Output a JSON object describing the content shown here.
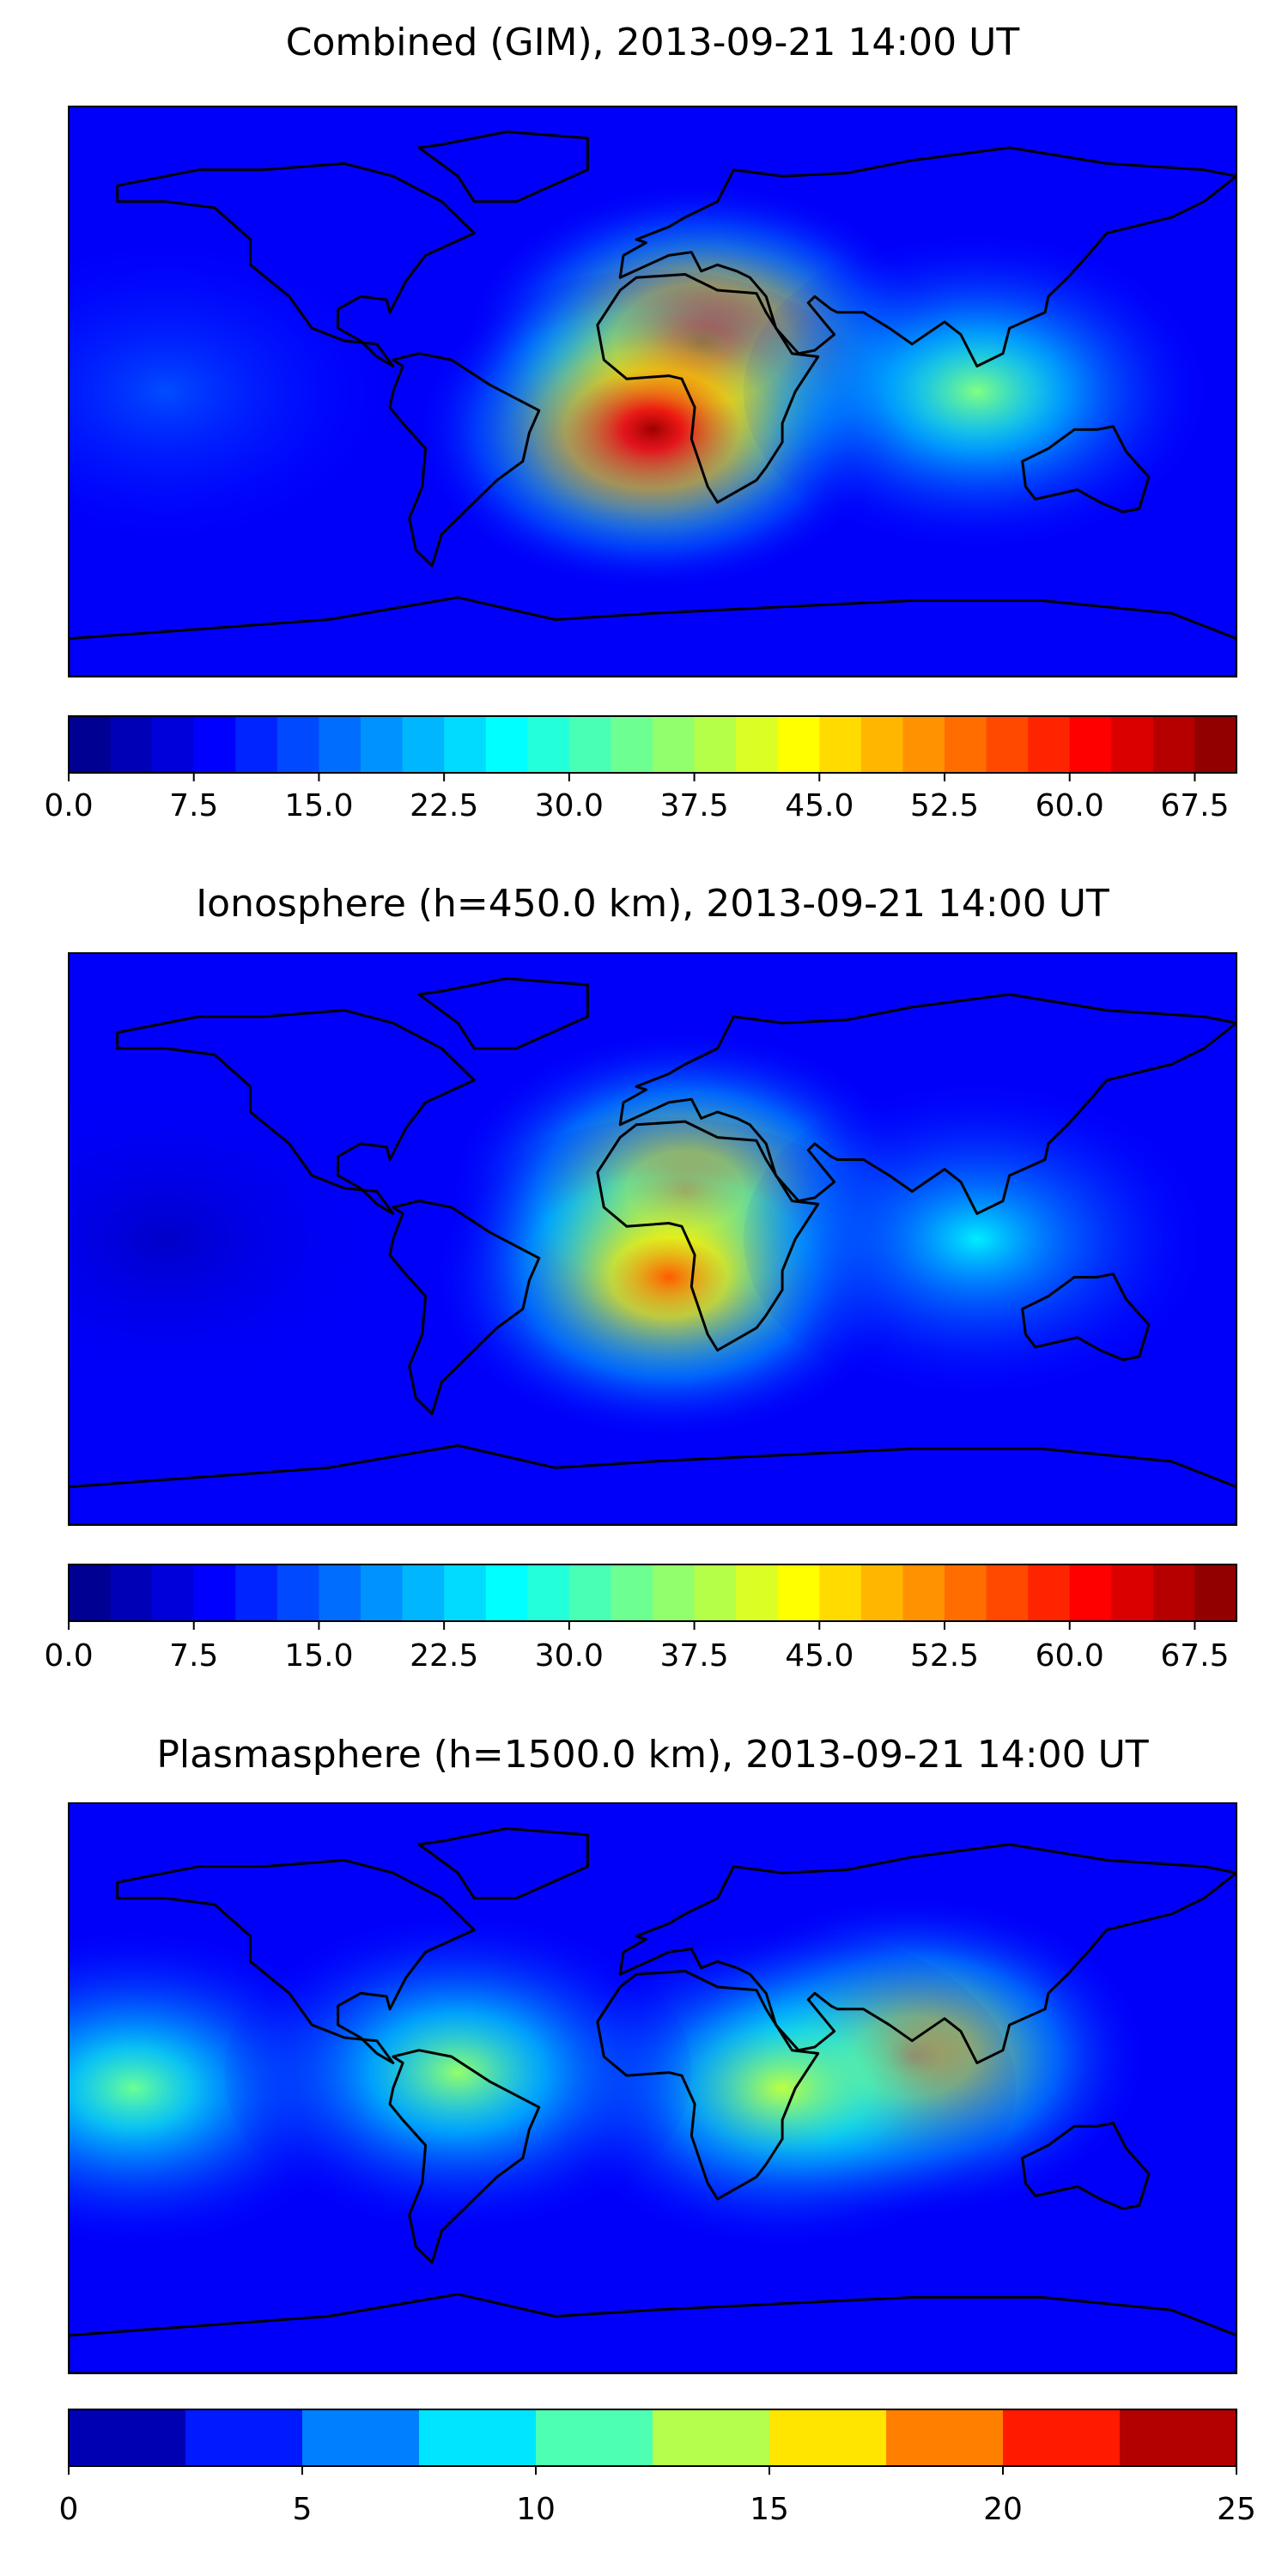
{
  "chart_data": [
    {
      "type": "heatmap",
      "title": "Combined (GIM), 2013-09-21 14:00 UT",
      "colormap": "jet",
      "colorbar": {
        "min": 0,
        "max": 70,
        "step": 2.5,
        "ticks": [
          "0.0",
          "7.5",
          "15.0",
          "22.5",
          "30.0",
          "37.5",
          "45.0",
          "52.5",
          "60.0",
          "67.5"
        ],
        "tick_values": [
          0,
          7.5,
          15,
          22.5,
          30,
          37.5,
          45,
          52.5,
          60,
          67.5
        ]
      },
      "peaks": [
        {
          "lon": 15,
          "lat": 15,
          "value": 66
        },
        {
          "lon": 0,
          "lat": -12,
          "value": 68
        },
        {
          "lon": 100,
          "lat": 0,
          "value": 35
        },
        {
          "lon": -150,
          "lat": 0,
          "value": 14
        }
      ],
      "xlim": [
        -180,
        180
      ],
      "ylim": [
        -90,
        90
      ]
    },
    {
      "type": "heatmap",
      "title": "Ionosphere  (h=450.0 km), 2013-09-21 14:00 UT",
      "colormap": "jet",
      "colorbar": {
        "min": 0,
        "max": 70,
        "step": 2.5,
        "ticks": [
          "0.0",
          "7.5",
          "15.0",
          "22.5",
          "30.0",
          "37.5",
          "45.0",
          "52.5",
          "60.0",
          "67.5"
        ],
        "tick_values": [
          0,
          7.5,
          15,
          22.5,
          30,
          37.5,
          45,
          52.5,
          60,
          67.5
        ]
      },
      "peaks": [
        {
          "lon": 10,
          "lat": 15,
          "value": 55
        },
        {
          "lon": 5,
          "lat": -12,
          "value": 55
        },
        {
          "lon": 100,
          "lat": 0,
          "value": 25
        },
        {
          "lon": -150,
          "lat": 0,
          "value": 5
        }
      ],
      "xlim": [
        -180,
        180
      ],
      "ylim": [
        -90,
        90
      ]
    },
    {
      "type": "heatmap",
      "title": "Plasmasphere (h=1500.0 km), 2013-09-21 14:00 UT",
      "colormap": "jet",
      "colorbar": {
        "min": 0,
        "max": 25,
        "step": 2.5,
        "ticks": [
          "0",
          "5",
          "10",
          "15",
          "20",
          "25"
        ],
        "tick_values": [
          0,
          5,
          10,
          15,
          20,
          25
        ]
      },
      "peaks": [
        {
          "lon": 80,
          "lat": 10,
          "value": 19
        },
        {
          "lon": 40,
          "lat": 0,
          "value": 14
        },
        {
          "lon": -160,
          "lat": 0,
          "value": 12
        },
        {
          "lon": -60,
          "lat": 5,
          "value": 13
        }
      ],
      "xlim": [
        -180,
        180
      ],
      "ylim": [
        -90,
        90
      ]
    }
  ]
}
